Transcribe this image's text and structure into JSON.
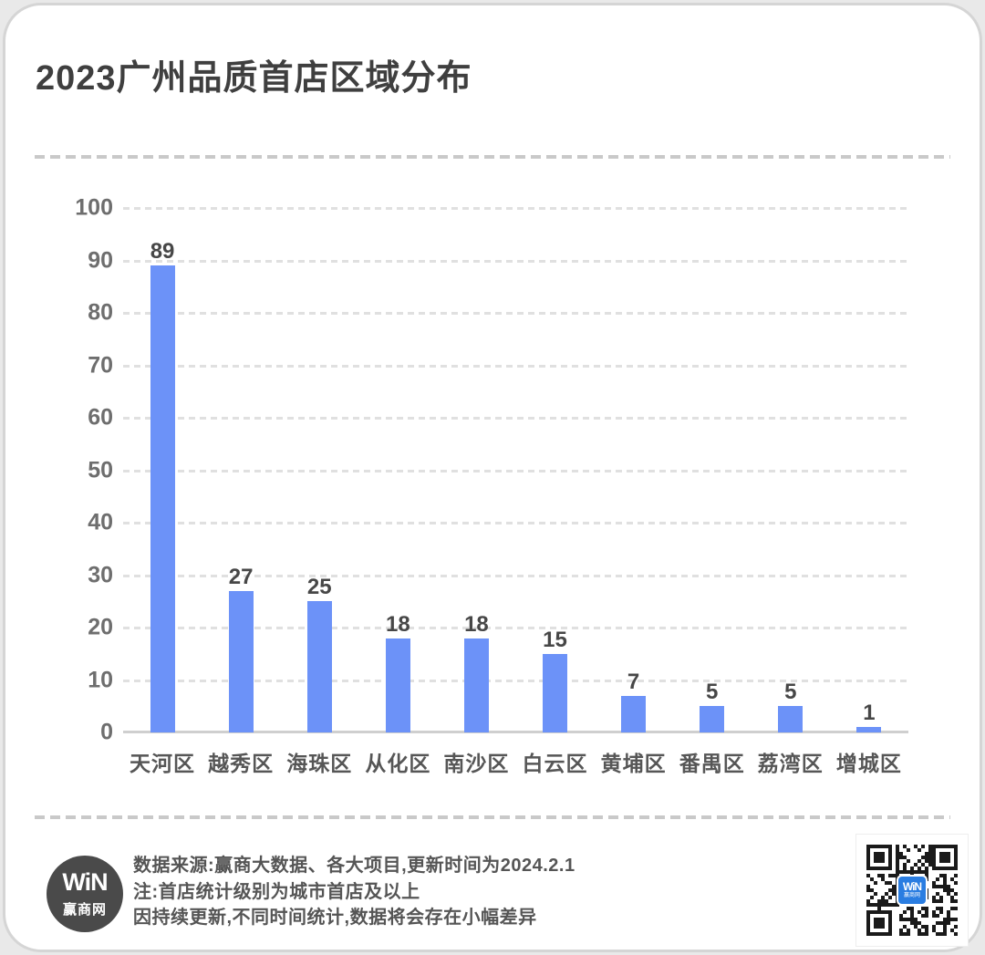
{
  "header": {
    "title": "2023广州品质首店区域分布"
  },
  "chart_data": {
    "type": "bar",
    "title": "2023广州品质首店区域分布",
    "categories": [
      "天河区",
      "越秀区",
      "海珠区",
      "从化区",
      "南沙区",
      "白云区",
      "黄埔区",
      "番禺区",
      "荔湾区",
      "增城区"
    ],
    "values": [
      89,
      27,
      25,
      18,
      18,
      15,
      7,
      5,
      5,
      1
    ],
    "value_labels": true,
    "yticks": [
      100,
      90,
      80,
      70,
      60,
      50,
      40,
      30,
      20,
      10,
      0
    ],
    "ylim": [
      0,
      100
    ],
    "xlabel": "",
    "ylabel": "",
    "grid": "horizontal-dashed",
    "legend": "none",
    "bar_color": "#6c92f8"
  },
  "footer": {
    "logo": {
      "mark": "WiN",
      "name": "赢商网"
    },
    "notes": [
      "数据来源:赢商大数据、各大项目,更新时间为2024.2.1",
      "注:首店统计级别为城市首店及以上",
      "因持续更新,不同时间统计,数据将会存在小幅差异"
    ],
    "qr": {
      "logo_line1": "WiN",
      "logo_line2": "赢商网"
    }
  },
  "colors": {
    "bar": "#6c92f8",
    "title_text": "#3f3f3f",
    "axis_text": "#6e6e6e",
    "qr_logo_blue": "#2a7de1",
    "card_border": "#d5d5d5"
  }
}
